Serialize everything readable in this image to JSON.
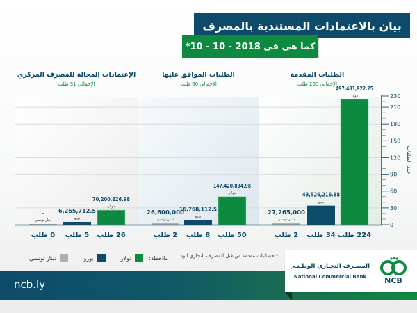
{
  "header": {
    "title": "بيان بالاعتمادات المستندية بالمصرف",
    "subtitle": "كما هي في 2018 - 10 - 10*"
  },
  "colors": {
    "dollar": "#0d8a40",
    "euro": "#0e4a6a",
    "dinar": "#b0b0b0",
    "axis": "#0e4a6a",
    "title_bg": "#0e4a6a",
    "subtitle_bg": "#0d8a40"
  },
  "chart_data": {
    "type": "bar",
    "title": "بيان بالاعتمادات المستندية بالمصرف",
    "subtitle": "كما هي في 2018 - 10 - 10*",
    "ylabel": "عدد الطلبات",
    "ylim": [
      0,
      230
    ],
    "yticks": [
      0,
      30,
      60,
      90,
      120,
      150,
      180,
      210,
      230
    ],
    "grid": true,
    "groups": [
      {
        "title": "الطلبات المقدمة",
        "total_label": "الإجمالي 260 طلب",
        "total": 260,
        "bars": [
          {
            "currency": "دولار",
            "series": "dollar",
            "count": 224,
            "count_label": "224 طلب",
            "amount": "497,481,922.25"
          },
          {
            "currency": "يورو",
            "series": "euro",
            "count": 34,
            "count_label": "34 طلب",
            "amount": "43,526,216.88"
          },
          {
            "currency": "دينار تونسي",
            "series": "dinar",
            "count": 2,
            "count_label": "2 طلب",
            "amount": "27,265,000"
          }
        ]
      },
      {
        "title": "الطلبات الموافق عليها",
        "total_label": "الإجمالي 60 طلب",
        "total": 60,
        "bars": [
          {
            "currency": "دولار",
            "series": "dollar",
            "count": 50,
            "count_label": "50 طلب",
            "amount": "147,420,834.98"
          },
          {
            "currency": "يورو",
            "series": "euro",
            "count": 8,
            "count_label": "8 طلب",
            "amount": "16,768,112.5"
          },
          {
            "currency": "دينار تونسي",
            "series": "dinar",
            "count": 2,
            "count_label": "2 طلب",
            "amount": "26,600,000"
          }
        ]
      },
      {
        "title": "الإعتمادات المحالة للمصرف المركزي",
        "total_label": "الإجمالي 31 طلب",
        "total": 31,
        "bars": [
          {
            "currency": "دولار",
            "series": "dollar",
            "count": 26,
            "count_label": "26 طلب",
            "amount": "70,200,826.98"
          },
          {
            "currency": "يورو",
            "series": "euro",
            "count": 5,
            "count_label": "5 طلب",
            "amount": "6,265,712.5"
          },
          {
            "currency": "دينار تونسي",
            "series": "dinar",
            "count": 0,
            "count_label": "0 طلب",
            "amount": "-"
          }
        ]
      }
    ],
    "legend": {
      "title": "ملاحظة:",
      "placement": "bottom-left",
      "items": [
        {
          "label": "دولار",
          "series": "dollar"
        },
        {
          "label": "يورو",
          "series": "euro"
        },
        {
          "label": "دينار تونسي",
          "series": "dinar"
        }
      ]
    }
  },
  "footnote": "*احصائيات مقدمة من قبل المصرف التجاري الوطني",
  "footer": {
    "url": "ncb.ly",
    "logo_arabic": "المصـرف التجـاري الوطـنـي",
    "logo_english": "National Commercial Bank",
    "logo_abbrev": "NCB"
  }
}
